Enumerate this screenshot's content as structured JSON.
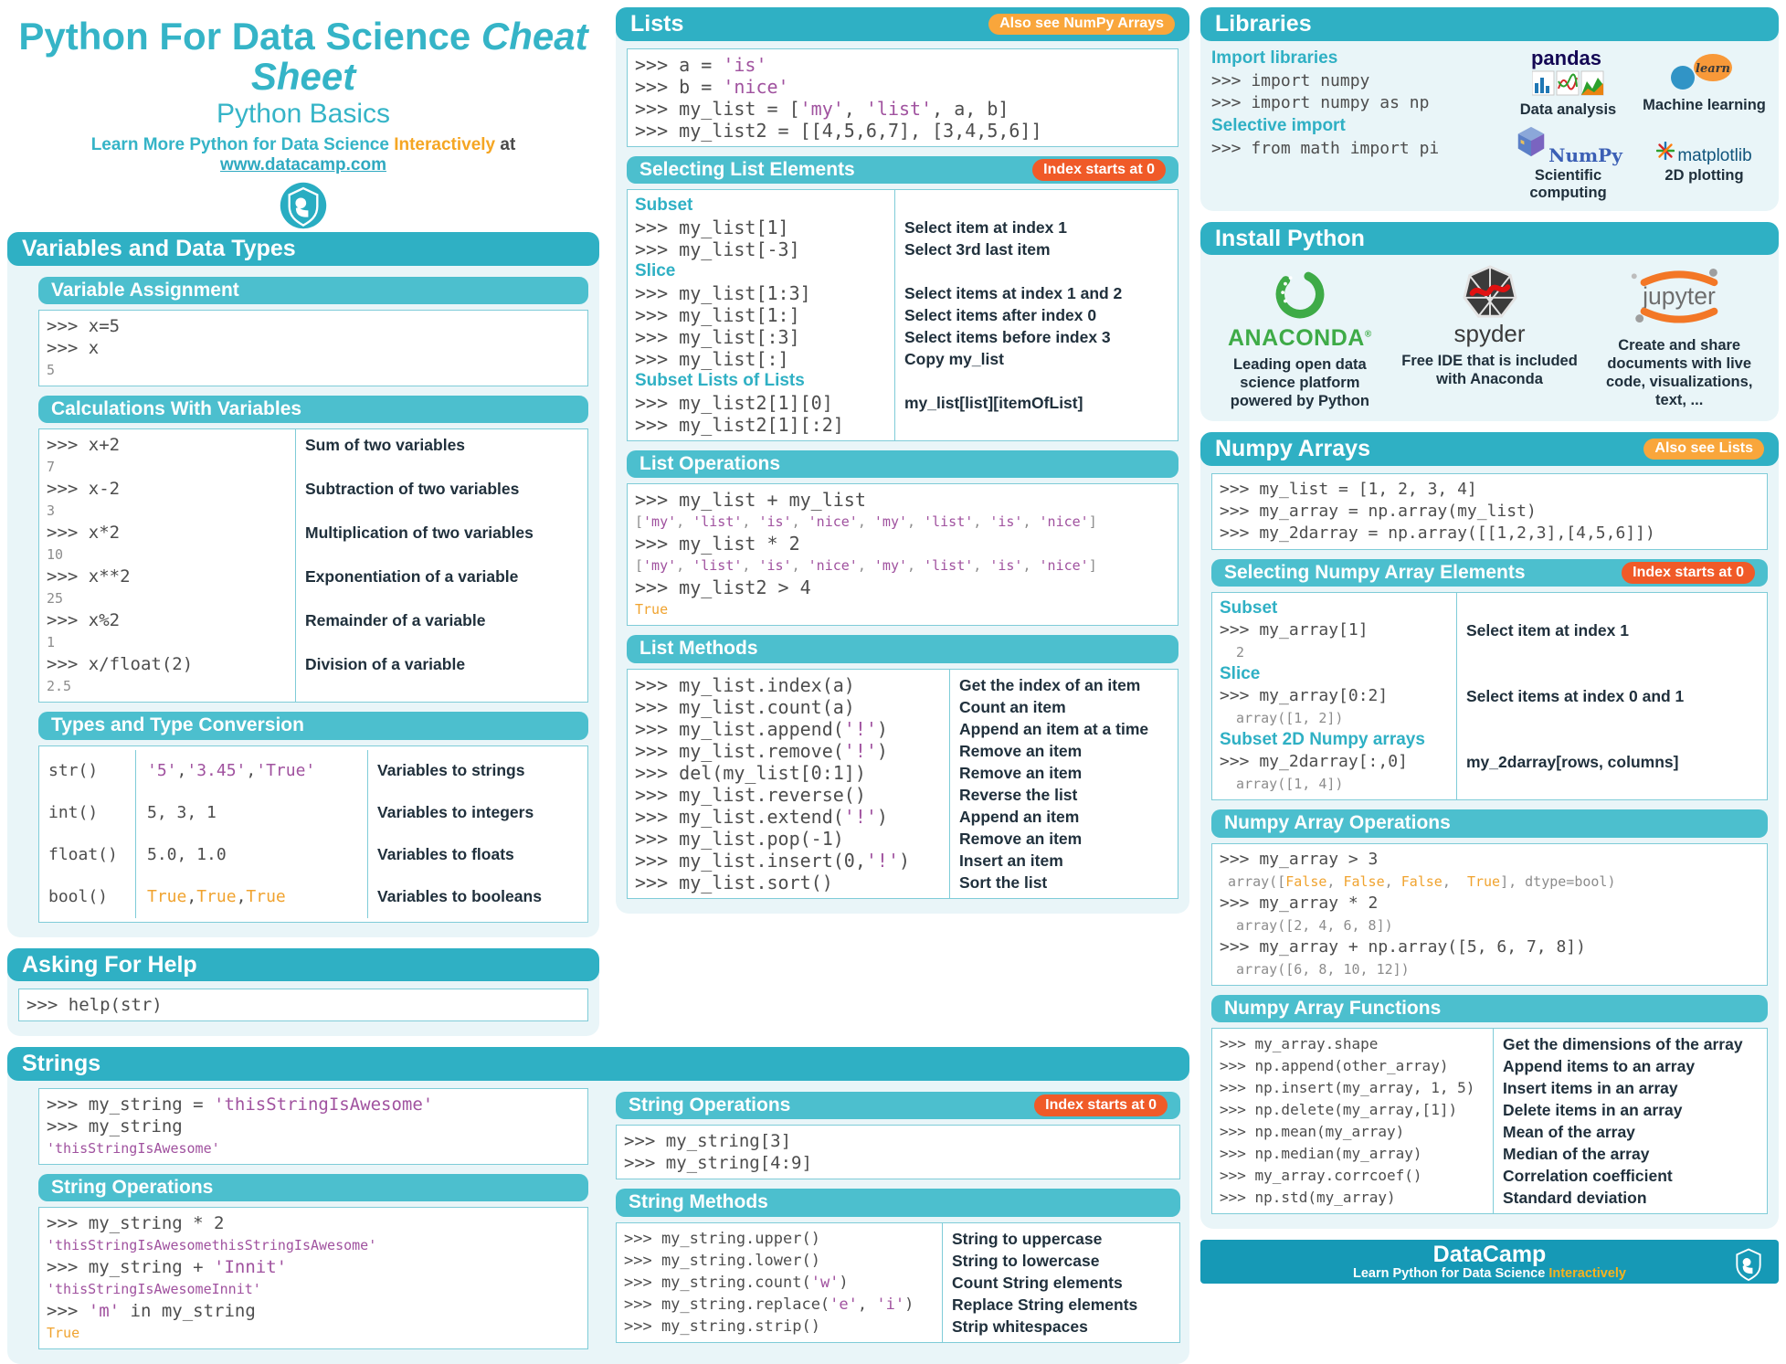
{
  "header": {
    "title_main": "Python For Data Science",
    "title_em": "Cheat Sheet",
    "subtitle": "Python Basics",
    "tagline": {
      "prefix": "Learn More Python for Data Science",
      "highlight": "Interactively",
      "mid": "at",
      "link": "www.datacamp.com"
    }
  },
  "badges": {
    "also_numpy": "Also see NumPy Arrays",
    "also_lists": "Also see Lists",
    "index0": "Index starts at 0"
  },
  "variables": {
    "title": "Variables and Data Types",
    "assignment": {
      "title": "Variable Assignment",
      "lines": [
        {
          "t": "c",
          "c": ">>> x=5"
        },
        {
          "t": "c",
          "c": ">>> x"
        },
        {
          "t": "o",
          "c": "5"
        }
      ]
    },
    "calculations": {
      "title": "Calculations With Variables",
      "duo": {
        "left": [
          {
            "t": "c",
            "c": ">>> x+2"
          },
          {
            "t": "o",
            "c": "7"
          },
          {
            "t": "c",
            "c": ">>> x-2"
          },
          {
            "t": "o",
            "c": "3"
          },
          {
            "t": "c",
            "c": ">>> x*2"
          },
          {
            "t": "o",
            "c": "10"
          },
          {
            "t": "c",
            "c": ">>> x**2"
          },
          {
            "t": "o",
            "c": "25"
          },
          {
            "t": "c",
            "c": ">>> x%2"
          },
          {
            "t": "o",
            "c": "1"
          },
          {
            "t": "c",
            "c": ">>> x/float(2)"
          },
          {
            "t": "o",
            "c": "2.5"
          }
        ],
        "right": [
          "Sum of two variables",
          "",
          "Subtraction of two variables",
          "",
          "Multiplication of two variables",
          "",
          "Exponentiation of a variable",
          "",
          "Remainder of a variable",
          "",
          "Division of a variable",
          ""
        ]
      }
    },
    "types": {
      "title": "Types and Type Conversion",
      "rows": [
        {
          "fn": "str()",
          "ex": "'5', '3.45', 'True'",
          "desc": "Variables to strings"
        },
        {
          "fn": "int()",
          "ex": "5, 3, 1",
          "desc": "Variables to integers"
        },
        {
          "fn": "float()",
          "ex": "5.0, 1.0",
          "desc": "Variables to floats"
        },
        {
          "fn": "bool()",
          "ex": "True, True, True",
          "desc": "Variables to booleans"
        }
      ]
    }
  },
  "help": {
    "title": "Asking For Help",
    "lines": [
      {
        "t": "c",
        "c": ">>> help(str)"
      }
    ]
  },
  "strings": {
    "title": "Strings",
    "intro": {
      "lines": [
        {
          "t": "c",
          "c": ">>> my_string = 'thisStringIsAwesome'"
        },
        {
          "t": "c",
          "c": ">>> my_string"
        },
        {
          "t": "o",
          "c": "'thisStringIsAwesome'"
        }
      ]
    },
    "ops_left": {
      "title": "String Operations",
      "lines": [
        {
          "t": "c",
          "c": ">>> my_string * 2"
        },
        {
          "t": "o",
          "c": "'thisStringIsAwesomethisStringIsAwesome'"
        },
        {
          "t": "c",
          "c": ">>> my_string + 'Innit'"
        },
        {
          "t": "o",
          "c": "'thisStringIsAwesomeInnit'"
        },
        {
          "t": "c",
          "c": ">>> 'm' in my_string"
        },
        {
          "t": "o",
          "c": "True"
        }
      ]
    },
    "ops_mid": {
      "title": "String Operations",
      "lines": [
        {
          "t": "c",
          "c": ">>> my_string[3]"
        },
        {
          "t": "c",
          "c": ">>> my_string[4:9]"
        }
      ]
    },
    "methods": {
      "title": "String Methods",
      "duo": {
        "left": [
          {
            "t": "c",
            "c": ">>> my_string.upper()"
          },
          {
            "t": "c",
            "c": ">>> my_string.lower()"
          },
          {
            "t": "c",
            "c": ">>> my_string.count('w')"
          },
          {
            "t": "c",
            "c": ">>> my_string.replace('e', 'i')"
          },
          {
            "t": "c",
            "c": ">>> my_string.strip()"
          }
        ],
        "right": [
          "String to uppercase",
          "String to lowercase",
          "Count String elements",
          "Replace String elements",
          "Strip whitespaces"
        ]
      }
    }
  },
  "lists": {
    "title": "Lists",
    "intro": {
      "lines": [
        {
          "t": "c",
          "c": ">>> a = 'is'"
        },
        {
          "t": "c",
          "c": ">>> b = 'nice'"
        },
        {
          "t": "c",
          "c": ">>> my_list = ['my', 'list', a, b]"
        },
        {
          "t": "c",
          "c": ">>> my_list2 = [[4,5,6,7], [3,4,5,6]]"
        }
      ]
    },
    "selecting": {
      "title": "Selecting List Elements",
      "duo": {
        "left": [
          {
            "t": "l",
            "c": "Subset"
          },
          {
            "t": "c",
            "c": ">>> my_list[1]"
          },
          {
            "t": "c",
            "c": ">>> my_list[-3]"
          },
          {
            "t": "l",
            "c": "Slice"
          },
          {
            "t": "c",
            "c": ">>> my_list[1:3]"
          },
          {
            "t": "c",
            "c": ">>> my_list[1:]"
          },
          {
            "t": "c",
            "c": ">>> my_list[:3]"
          },
          {
            "t": "c",
            "c": ">>> my_list[:]"
          },
          {
            "t": "l",
            "c": "Subset Lists of Lists"
          },
          {
            "t": "c",
            "c": ">>> my_list2[1][0]"
          },
          {
            "t": "c",
            "c": ">>> my_list2[1][:2]"
          }
        ],
        "right": [
          "",
          "Select item at index 1",
          "Select 3rd last item",
          "",
          "Select items at index 1 and 2",
          "Select items after index 0",
          "Select items before index 3",
          "Copy my_list",
          "",
          "my_list[list][itemOfList]",
          ""
        ]
      }
    },
    "operations": {
      "title": "List Operations",
      "lines": [
        {
          "t": "c",
          "c": ">>> my_list + my_list"
        },
        {
          "t": "o",
          "c": "['my', 'list', 'is', 'nice', 'my', 'list', 'is', 'nice']"
        },
        {
          "t": "c",
          "c": ">>> my_list * 2"
        },
        {
          "t": "o",
          "c": "['my', 'list', 'is', 'nice', 'my', 'list', 'is', 'nice']"
        },
        {
          "t": "c",
          "c": ">>> my_list2 > 4"
        },
        {
          "t": "o",
          "c": "True"
        }
      ]
    },
    "methods": {
      "title": "List Methods",
      "duo": {
        "left": [
          {
            "t": "c",
            "c": ">>> my_list.index(a)"
          },
          {
            "t": "c",
            "c": ">>> my_list.count(a)"
          },
          {
            "t": "c",
            "c": ">>> my_list.append('!')"
          },
          {
            "t": "c",
            "c": ">>> my_list.remove('!')"
          },
          {
            "t": "c",
            "c": ">>> del(my_list[0:1])"
          },
          {
            "t": "c",
            "c": ">>> my_list.reverse()"
          },
          {
            "t": "c",
            "c": ">>> my_list.extend('!')"
          },
          {
            "t": "c",
            "c": ">>> my_list.pop(-1)"
          },
          {
            "t": "c",
            "c": ">>> my_list.insert(0,'!')"
          },
          {
            "t": "c",
            "c": ">>> my_list.sort()"
          }
        ],
        "right": [
          "Get the index of an item",
          "Count an item",
          "Append an item at a time",
          "Remove an item",
          "Remove an item",
          "Reverse the list",
          "Append an item",
          "Remove an item",
          "Insert an item",
          "Sort the list"
        ]
      }
    }
  },
  "libraries": {
    "title": "Libraries",
    "import_label": "Import libraries",
    "import_lines": [
      {
        "t": "c",
        "c": ">>> import numpy"
      },
      {
        "t": "c",
        "c": ">>> import numpy as np"
      }
    ],
    "selective_label": "Selective import",
    "selective_lines": [
      {
        "t": "c",
        "c": ">>> from math import pi"
      }
    ],
    "logos": [
      {
        "logo_text": "pandas",
        "caption": "Data analysis"
      },
      {
        "logo_text": "learn",
        "caption": "Machine learning"
      },
      {
        "logo_text": "NumPy",
        "caption": "Scientific computing"
      },
      {
        "logo_text": "matplotlib",
        "caption": "2D plotting"
      }
    ]
  },
  "install": {
    "title": "Install Python",
    "items": [
      {
        "logo_text": "ANACONDA",
        "caption": "Leading open data science platform powered by Python"
      },
      {
        "logo_text": "spyder",
        "caption": "Free IDE that is included with Anaconda"
      },
      {
        "logo_text": "jupyter",
        "caption": "Create and share documents with live code, visualizations, text, ..."
      }
    ]
  },
  "numpy": {
    "title": "Numpy Arrays",
    "intro": {
      "lines": [
        {
          "t": "c",
          "c": ">>> my_list = [1, 2, 3, 4]"
        },
        {
          "t": "c",
          "c": ">>> my_array = np.array(my_list)"
        },
        {
          "t": "c",
          "c": ">>> my_2darray = np.array([[1,2,3],[4,5,6]])"
        }
      ]
    },
    "selecting": {
      "title": "Selecting Numpy Array Elements",
      "duo": {
        "left": [
          {
            "t": "l",
            "c": "Subset"
          },
          {
            "t": "c",
            "c": ">>> my_array[1]"
          },
          {
            "t": "o",
            "c": "  2"
          },
          {
            "t": "l",
            "c": "Slice"
          },
          {
            "t": "c",
            "c": ">>> my_array[0:2]"
          },
          {
            "t": "o",
            "c": "  array([1, 2])"
          },
          {
            "t": "l",
            "c": "Subset 2D Numpy arrays"
          },
          {
            "t": "c",
            "c": ">>> my_2darray[:,0]"
          },
          {
            "t": "o",
            "c": "  array([1, 4])"
          }
        ],
        "right": [
          "",
          "Select item at index 1",
          "",
          "",
          "Select items at index 0 and 1",
          "",
          "",
          "my_2darray[rows, columns]",
          ""
        ]
      }
    },
    "operations": {
      "title": "Numpy Array Operations",
      "lines": [
        {
          "t": "c",
          "c": ">>> my_array > 3"
        },
        {
          "t": "o",
          "c": " array([False, False, False,  True], dtype=bool)"
        },
        {
          "t": "c",
          "c": ">>> my_array * 2"
        },
        {
          "t": "o",
          "c": "  array([2, 4, 6, 8])"
        },
        {
          "t": "c",
          "c": ">>> my_array + np.array([5, 6, 7, 8])"
        },
        {
          "t": "o",
          "c": "  array([6, 8, 10, 12])"
        }
      ]
    },
    "functions": {
      "title": "Numpy Array Functions",
      "duo": {
        "left": [
          {
            "t": "c",
            "c": ">>> my_array.shape"
          },
          {
            "t": "c",
            "c": ">>> np.append(other_array)"
          },
          {
            "t": "c",
            "c": ">>> np.insert(my_array, 1, 5)"
          },
          {
            "t": "c",
            "c": ">>> np.delete(my_array,[1])"
          },
          {
            "t": "c",
            "c": ">>> np.mean(my_array)"
          },
          {
            "t": "c",
            "c": ">>> np.median(my_array)"
          },
          {
            "t": "c",
            "c": ">>> my_array.corrcoef()"
          },
          {
            "t": "c",
            "c": ">>> np.std(my_array)"
          }
        ],
        "right": [
          "Get the dimensions of the array",
          "Append items to an array",
          "Insert items in an array",
          "Delete items in an array",
          "Mean of the array",
          "Median of the array",
          "Correlation coefficient",
          "Standard deviation"
        ]
      }
    }
  },
  "footer": {
    "brand": "DataCamp",
    "tagline_prefix": "Learn Python for Data Science",
    "tagline_highlight": "Interactively"
  },
  "colors": {
    "teal": "#2fb0c4",
    "teal_sub": "#4cbfce",
    "amber": "#f9a63b",
    "red_orange": "#f05a28",
    "string_purple": "#a0529f",
    "bool_orange": "#f0a32f",
    "footer_teal": "#1699b6"
  }
}
